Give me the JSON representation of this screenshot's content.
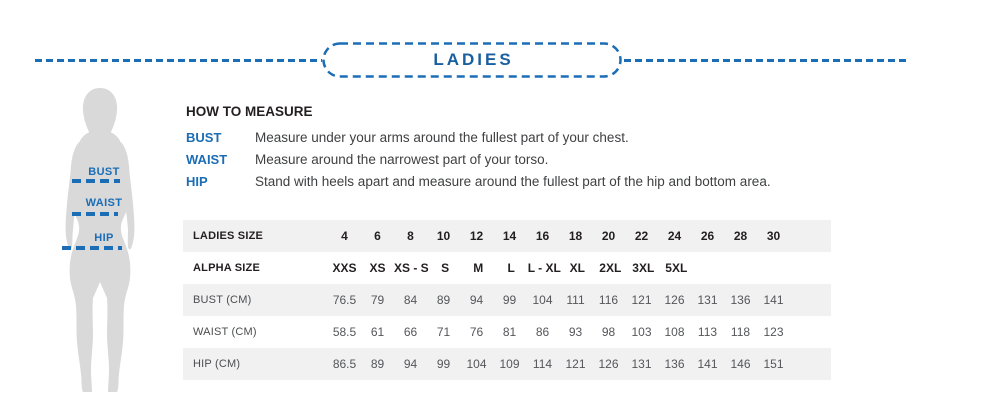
{
  "header": {
    "title": "LADIES"
  },
  "figure": {
    "labels": [
      {
        "label": "BUST"
      },
      {
        "label": "WAIST"
      },
      {
        "label": "HIP"
      }
    ]
  },
  "how_to_measure": {
    "title": "HOW TO MEASURE",
    "items": [
      {
        "label": "BUST",
        "text": "Measure under your arms around the fullest part of your chest."
      },
      {
        "label": "WAIST",
        "text": "Measure around the narrowest part of your torso."
      },
      {
        "label": "HIP",
        "text": "Stand with heels apart and measure around the fullest part of the hip and bottom area."
      }
    ]
  },
  "size_table": {
    "rows": [
      {
        "label": "LADIES SIZE",
        "header": true,
        "shaded": true,
        "values": [
          "4",
          "6",
          "8",
          "10",
          "12",
          "14",
          "16",
          "18",
          "20",
          "22",
          "24",
          "26",
          "28",
          "30"
        ]
      },
      {
        "label": "ALPHA SIZE",
        "header": true,
        "shaded": false,
        "values": [
          "XXS",
          "XS",
          "XS - S",
          "S",
          "M",
          "L",
          "L - XL",
          "XL",
          "2XL",
          "3XL",
          "5XL",
          "",
          "",
          ""
        ]
      },
      {
        "label": "BUST (CM)",
        "header": false,
        "shaded": true,
        "values": [
          "76.5",
          "79",
          "84",
          "89",
          "94",
          "99",
          "104",
          "111",
          "116",
          "121",
          "126",
          "131",
          "136",
          "141"
        ]
      },
      {
        "label": "WAIST (CM)",
        "header": false,
        "shaded": false,
        "values": [
          "58.5",
          "61",
          "66",
          "71",
          "76",
          "81",
          "86",
          "93",
          "98",
          "103",
          "108",
          "113",
          "118",
          "123"
        ]
      },
      {
        "label": "HIP (CM)",
        "header": false,
        "shaded": true,
        "values": [
          "86.5",
          "89",
          "94",
          "99",
          "104",
          "109",
          "114",
          "121",
          "126",
          "131",
          "136",
          "141",
          "146",
          "151"
        ]
      }
    ]
  },
  "colors": {
    "accent_blue": "#1b6db6",
    "title_blue": "#195f9f",
    "row_shade": "#f1f1f2",
    "silhouette": "#d9d9d9",
    "text_dark": "#231f20",
    "text_gray": "#55565a"
  }
}
